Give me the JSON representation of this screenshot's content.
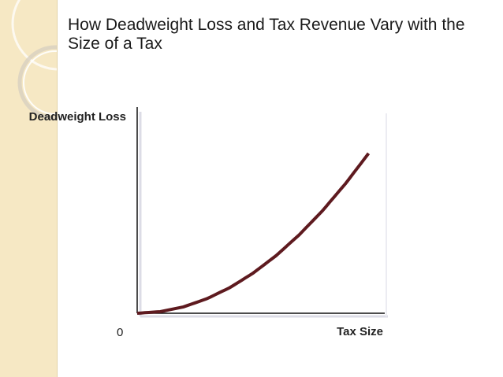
{
  "slide": {
    "title": "How Deadweight Loss and Tax Revenue Vary with the Size of a Tax"
  },
  "chart_data": {
    "type": "line",
    "title": "How Deadweight Loss and Tax Revenue Vary with the Size of a Tax",
    "xlabel": "Tax Size",
    "ylabel": "Deadweight Loss",
    "x_tick_labels": [
      "0"
    ],
    "grid": false,
    "legend": "none",
    "series": [
      {
        "x": [
          0,
          0.1,
          0.2,
          0.3,
          0.4,
          0.5,
          0.6,
          0.7,
          0.8,
          0.9,
          1.0
        ],
        "values": [
          0,
          0.01,
          0.04,
          0.09,
          0.16,
          0.25,
          0.36,
          0.49,
          0.64,
          0.81,
          1.0
        ]
      }
    ],
    "xlim": [
      0,
      1.07
    ],
    "ylim": [
      0,
      1.29
    ],
    "colors": {
      "curve": "#5e1a1f",
      "axis": "#111111",
      "shadow": "#dcdce6"
    }
  }
}
